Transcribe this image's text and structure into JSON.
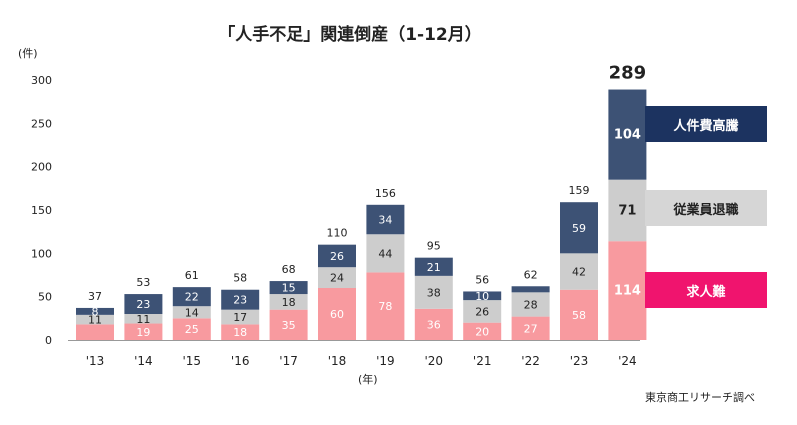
{
  "chart_data": {
    "type": "bar",
    "stacked": true,
    "title": "「人手不足」関連倒産（1-12月）",
    "ylabel": "(件)",
    "xlabel": "(年)",
    "ylim": [
      0,
      300
    ],
    "yticks": [
      0,
      50,
      100,
      150,
      200,
      250,
      300
    ],
    "categories": [
      "'13",
      "'14",
      "'15",
      "'16",
      "'17",
      "'18",
      "'19",
      "'20",
      "'21",
      "'22",
      "'23",
      "'24"
    ],
    "series": [
      {
        "name": "求人難",
        "color": "#f89a9f",
        "label_color": "#ffffff",
        "values": [
          18,
          19,
          25,
          18,
          35,
          60,
          78,
          36,
          20,
          27,
          58,
          114
        ]
      },
      {
        "name": "従業員退職",
        "color": "#cdcdcd",
        "label_color": "#222222",
        "values": [
          11,
          11,
          14,
          17,
          18,
          24,
          44,
          38,
          26,
          28,
          42,
          71
        ]
      },
      {
        "name": "人件費高騰",
        "color": "#3d5275",
        "label_color": "#ffffff",
        "values": [
          8,
          23,
          22,
          23,
          15,
          26,
          34,
          21,
          10,
          7,
          59,
          104
        ]
      }
    ],
    "totals": [
      37,
      53,
      61,
      58,
      68,
      110,
      156,
      95,
      56,
      62,
      159,
      289
    ],
    "hidden_labels": [
      [
        0,
        0
      ],
      [
        9,
        2
      ]
    ],
    "legend_position": "right",
    "grid": false
  },
  "legend": {
    "items": [
      {
        "label": "人件費高騰",
        "bg": "#1c3360",
        "fg": "#ffffff"
      },
      {
        "label": "従業員退職",
        "bg": "#d6d6d6",
        "fg": "#222222"
      },
      {
        "label": "求人難",
        "bg": "#f0146e",
        "fg": "#ffffff"
      }
    ]
  },
  "source": "東京商工リサーチ調べ"
}
